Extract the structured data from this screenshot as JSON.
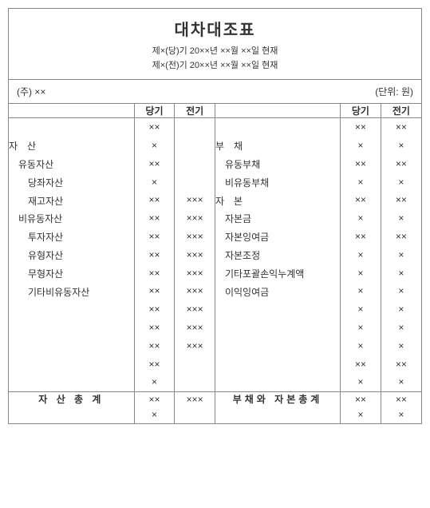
{
  "title": "대차대조표",
  "subtitle1": "제×(당)기 20××년 ××월 ××일 현재",
  "subtitle2": "제×(전)기 20××년 ××월 ××일 현재",
  "company": "(주) ××",
  "unit": "(단위: 원)",
  "periods": {
    "current": "당기",
    "prior": "전기"
  },
  "left": {
    "section": "자산",
    "rows": [
      {
        "label": "유동자산",
        "indent": 1
      },
      {
        "label": "당좌자산",
        "indent": 2
      },
      {
        "label": "재고자산",
        "indent": 2
      },
      {
        "label": "비유동자산",
        "indent": 1
      },
      {
        "label": "투자자산",
        "indent": 2
      },
      {
        "label": "유형자산",
        "indent": 2
      },
      {
        "label": "무형자산",
        "indent": 2
      },
      {
        "label": "기타비유동자산",
        "indent": 2
      }
    ],
    "current_vals": [
      "××",
      "×",
      "××",
      "×",
      "××",
      "××",
      "××",
      "××",
      "××",
      "××",
      "××",
      "××",
      "××",
      "××",
      "×"
    ],
    "prior_vals": [
      "",
      "",
      "",
      "",
      "×××",
      "×××",
      "×××",
      "×××",
      "×××",
      "×××",
      "×××",
      "×××",
      "×××",
      "",
      ""
    ],
    "total_label": "자 산 총 계",
    "total_current": [
      "××",
      "×"
    ],
    "total_prior": [
      "×××"
    ]
  },
  "right": {
    "section1": "부채",
    "section2": "자본",
    "rows": [
      {
        "label": "부채",
        "indent": 0,
        "spread": true
      },
      {
        "label": "유동부채",
        "indent": 1
      },
      {
        "label": "비유동부채",
        "indent": 1
      },
      {
        "label": "자본",
        "indent": 0,
        "spread": true
      },
      {
        "label": "자본금",
        "indent": 1
      },
      {
        "label": "자본잉여금",
        "indent": 1
      },
      {
        "label": "자본조정",
        "indent": 1
      },
      {
        "label": "기타포괄손익누계액",
        "indent": 1
      },
      {
        "label": "이익잉여금",
        "indent": 1
      }
    ],
    "current_vals": [
      "××",
      "×",
      "××",
      "×",
      "××",
      "×",
      "××",
      "×",
      "×",
      "×",
      "×",
      "×",
      "×",
      "××",
      "×"
    ],
    "prior_vals": [
      "××",
      "×",
      "××",
      "×",
      "××",
      "×",
      "××",
      "×",
      "×",
      "×",
      "×",
      "×",
      "×",
      "××",
      "×"
    ],
    "total_label": "부채와 자본총계",
    "total_current": [
      "××",
      "×"
    ],
    "total_prior": [
      "××",
      "×"
    ]
  }
}
